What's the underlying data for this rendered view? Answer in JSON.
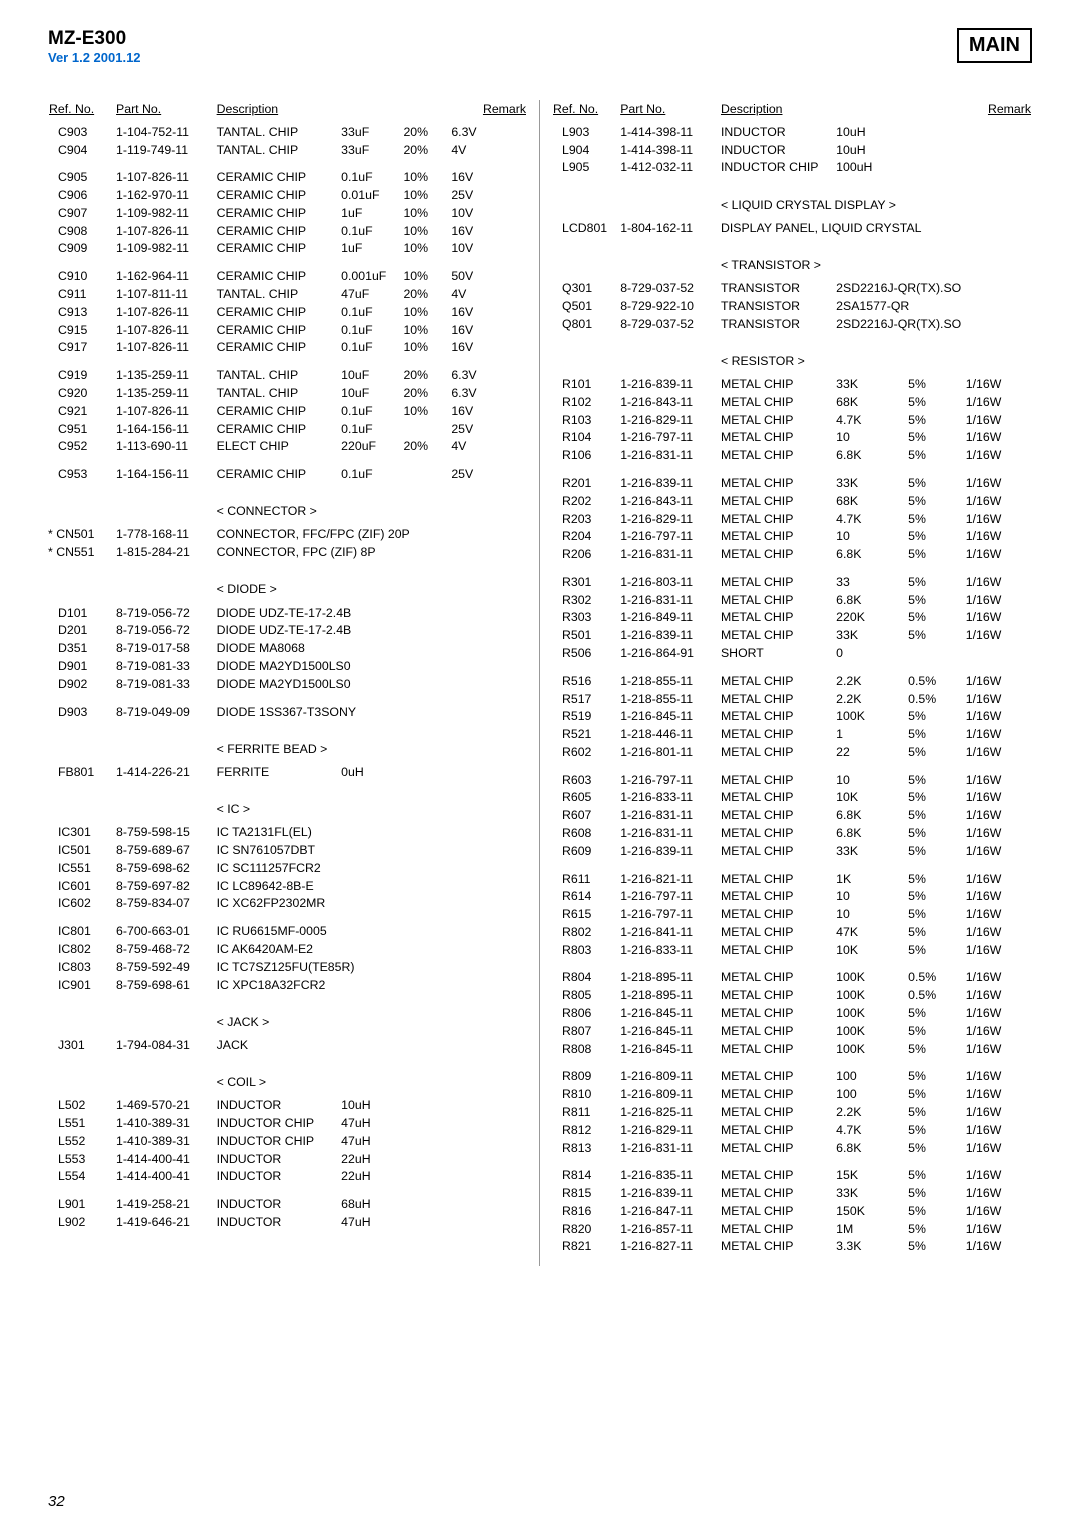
{
  "header": {
    "model": "MZ-E300",
    "ver": "Ver 1.2 2001.12",
    "ver_color": "#0066cc",
    "main_label": "MAIN"
  },
  "page_number": "32",
  "col_headers": [
    "Ref. No.",
    "Part No.",
    "Description",
    "",
    "",
    "Remark"
  ],
  "col_headers_r": [
    "Ref. No.",
    "Part No.",
    "Description",
    "",
    "",
    "Remark"
  ],
  "left": {
    "widths": [
      "14%",
      "21%",
      "26%",
      "13%",
      "10%",
      "16%"
    ],
    "groups": [
      {
        "rows": [
          [
            "C903",
            "1-104-752-11",
            "TANTAL. CHIP",
            "33uF",
            "20%",
            "6.3V"
          ],
          [
            "C904",
            "1-119-749-11",
            "TANTAL. CHIP",
            "33uF",
            "20%",
            "4V"
          ]
        ]
      },
      {
        "rows": [
          [
            "C905",
            "1-107-826-11",
            "CERAMIC CHIP",
            "0.1uF",
            "10%",
            "16V"
          ],
          [
            "C906",
            "1-162-970-11",
            "CERAMIC CHIP",
            "0.01uF",
            "10%",
            "25V"
          ],
          [
            "C907",
            "1-109-982-11",
            "CERAMIC CHIP",
            "1uF",
            "10%",
            "10V"
          ],
          [
            "C908",
            "1-107-826-11",
            "CERAMIC CHIP",
            "0.1uF",
            "10%",
            "16V"
          ],
          [
            "C909",
            "1-109-982-11",
            "CERAMIC CHIP",
            "1uF",
            "10%",
            "10V"
          ]
        ]
      },
      {
        "rows": [
          [
            "C910",
            "1-162-964-11",
            "CERAMIC CHIP",
            "0.001uF",
            "10%",
            "50V"
          ],
          [
            "C911",
            "1-107-811-11",
            "TANTAL. CHIP",
            "47uF",
            "20%",
            "4V"
          ],
          [
            "C913",
            "1-107-826-11",
            "CERAMIC CHIP",
            "0.1uF",
            "10%",
            "16V"
          ],
          [
            "C915",
            "1-107-826-11",
            "CERAMIC CHIP",
            "0.1uF",
            "10%",
            "16V"
          ],
          [
            "C917",
            "1-107-826-11",
            "CERAMIC CHIP",
            "0.1uF",
            "10%",
            "16V"
          ]
        ]
      },
      {
        "rows": [
          [
            "C919",
            "1-135-259-11",
            "TANTAL. CHIP",
            "10uF",
            "20%",
            "6.3V"
          ],
          [
            "C920",
            "1-135-259-11",
            "TANTAL. CHIP",
            "10uF",
            "20%",
            "6.3V"
          ],
          [
            "C921",
            "1-107-826-11",
            "CERAMIC CHIP",
            "0.1uF",
            "10%",
            "16V"
          ],
          [
            "C951",
            "1-164-156-11",
            "CERAMIC CHIP",
            "0.1uF",
            "",
            "25V"
          ],
          [
            "C952",
            "1-113-690-11",
            "ELECT CHIP",
            "220uF",
            "20%",
            "4V"
          ]
        ]
      },
      {
        "rows": [
          [
            "C953",
            "1-164-156-11",
            "CERAMIC CHIP",
            "0.1uF",
            "",
            "25V"
          ]
        ]
      },
      {
        "section": "< CONNECTOR >"
      },
      {
        "rows": [
          [
            "* CN501",
            "1-778-168-11",
            "CONNECTOR, FFC/FPC (ZIF) 20P",
            "",
            "",
            ""
          ],
          [
            "* CN551",
            "1-815-284-21",
            "CONNECTOR, FPC (ZIF) 8P",
            "",
            "",
            ""
          ]
        ],
        "star": true
      },
      {
        "section": "< DIODE >"
      },
      {
        "rows": [
          [
            "D101",
            "8-719-056-72",
            "DIODE  UDZ-TE-17-2.4B",
            "",
            "",
            ""
          ],
          [
            "D201",
            "8-719-056-72",
            "DIODE  UDZ-TE-17-2.4B",
            "",
            "",
            ""
          ],
          [
            "D351",
            "8-719-017-58",
            "DIODE  MA8068",
            "",
            "",
            ""
          ],
          [
            "D901",
            "8-719-081-33",
            "DIODE  MA2YD1500LS0",
            "",
            "",
            ""
          ],
          [
            "D902",
            "8-719-081-33",
            "DIODE  MA2YD1500LS0",
            "",
            "",
            ""
          ]
        ]
      },
      {
        "rows": [
          [
            "D903",
            "8-719-049-09",
            "DIODE  1SS367-T3SONY",
            "",
            "",
            ""
          ]
        ]
      },
      {
        "section": "< FERRITE BEAD >"
      },
      {
        "rows": [
          [
            "FB801",
            "1-414-226-21",
            "FERRITE",
            "0uH",
            "",
            ""
          ]
        ]
      },
      {
        "section": "< IC >"
      },
      {
        "rows": [
          [
            "IC301",
            "8-759-598-15",
            "IC   TA2131FL(EL)",
            "",
            "",
            ""
          ],
          [
            "IC501",
            "8-759-689-67",
            "IC   SN761057DBT",
            "",
            "",
            ""
          ],
          [
            "IC551",
            "8-759-698-62",
            "IC   SC111257FCR2",
            "",
            "",
            ""
          ],
          [
            "IC601",
            "8-759-697-82",
            "IC   LC89642-8B-E",
            "",
            "",
            ""
          ],
          [
            "IC602",
            "8-759-834-07",
            "IC   XC62FP2302MR",
            "",
            "",
            ""
          ]
        ]
      },
      {
        "rows": [
          [
            "IC801",
            "6-700-663-01",
            "IC   RU6615MF-0005",
            "",
            "",
            ""
          ],
          [
            "IC802",
            "8-759-468-72",
            "IC   AK6420AM-E2",
            "",
            "",
            ""
          ],
          [
            "IC803",
            "8-759-592-49",
            "IC   TC7SZ125FU(TE85R)",
            "",
            "",
            ""
          ],
          [
            "IC901",
            "8-759-698-61",
            "IC   XPC18A32FCR2",
            "",
            "",
            ""
          ]
        ]
      },
      {
        "section": "< JACK >"
      },
      {
        "rows": [
          [
            "J301",
            "1-794-084-31",
            "JACK",
            "",
            "",
            ""
          ]
        ]
      },
      {
        "section": "< COIL >"
      },
      {
        "rows": [
          [
            "L502",
            "1-469-570-21",
            "INDUCTOR",
            "10uH",
            "",
            ""
          ],
          [
            "L551",
            "1-410-389-31",
            "INDUCTOR CHIP",
            "47uH",
            "",
            ""
          ],
          [
            "L552",
            "1-410-389-31",
            "INDUCTOR CHIP",
            "47uH",
            "",
            ""
          ],
          [
            "L553",
            "1-414-400-41",
            "INDUCTOR",
            "22uH",
            "",
            ""
          ],
          [
            "L554",
            "1-414-400-41",
            "INDUCTOR",
            "22uH",
            "",
            ""
          ]
        ]
      },
      {
        "rows": [
          [
            "L901",
            "1-419-258-21",
            "INDUCTOR",
            "68uH",
            "",
            ""
          ],
          [
            "L902",
            "1-419-646-21",
            "INDUCTOR",
            "47uH",
            "",
            ""
          ]
        ]
      }
    ]
  },
  "right": {
    "widths": [
      "14%",
      "21%",
      "24%",
      "15%",
      "12%",
      "14%"
    ],
    "groups": [
      {
        "rows": [
          [
            "L903",
            "1-414-398-11",
            "INDUCTOR",
            "10uH",
            "",
            ""
          ],
          [
            "L904",
            "1-414-398-11",
            "INDUCTOR",
            "10uH",
            "",
            ""
          ],
          [
            "L905",
            "1-412-032-11",
            "INDUCTOR CHIP",
            "100uH",
            "",
            ""
          ]
        ]
      },
      {
        "section": "< LIQUID CRYSTAL DISPLAY >"
      },
      {
        "rows": [
          [
            "LCD801",
            "1-804-162-11",
            "DISPLAY PANEL, LIQUID CRYSTAL",
            "",
            "",
            ""
          ]
        ],
        "wide3": true
      },
      {
        "section": "< TRANSISTOR >"
      },
      {
        "rows": [
          [
            "Q301",
            "8-729-037-52",
            "TRANSISTOR",
            "2SD2216J-QR(TX).SO",
            "",
            ""
          ],
          [
            "Q501",
            "8-729-922-10",
            "TRANSISTOR",
            "2SA1577-QR",
            "",
            ""
          ],
          [
            "Q801",
            "8-729-037-52",
            "TRANSISTOR",
            "2SD2216J-QR(TX).SO",
            "",
            ""
          ]
        ],
        "wide4": true
      },
      {
        "section": "< RESISTOR >"
      },
      {
        "rows": [
          [
            "R101",
            "1-216-839-11",
            "METAL CHIP",
            "33K",
            "5%",
            "1/16W"
          ],
          [
            "R102",
            "1-216-843-11",
            "METAL CHIP",
            "68K",
            "5%",
            "1/16W"
          ],
          [
            "R103",
            "1-216-829-11",
            "METAL CHIP",
            "4.7K",
            "5%",
            "1/16W"
          ],
          [
            "R104",
            "1-216-797-11",
            "METAL CHIP",
            "10",
            "5%",
            "1/16W"
          ],
          [
            "R106",
            "1-216-831-11",
            "METAL CHIP",
            "6.8K",
            "5%",
            "1/16W"
          ]
        ]
      },
      {
        "rows": [
          [
            "R201",
            "1-216-839-11",
            "METAL CHIP",
            "33K",
            "5%",
            "1/16W"
          ],
          [
            "R202",
            "1-216-843-11",
            "METAL CHIP",
            "68K",
            "5%",
            "1/16W"
          ],
          [
            "R203",
            "1-216-829-11",
            "METAL CHIP",
            "4.7K",
            "5%",
            "1/16W"
          ],
          [
            "R204",
            "1-216-797-11",
            "METAL CHIP",
            "10",
            "5%",
            "1/16W"
          ],
          [
            "R206",
            "1-216-831-11",
            "METAL CHIP",
            "6.8K",
            "5%",
            "1/16W"
          ]
        ]
      },
      {
        "rows": [
          [
            "R301",
            "1-216-803-11",
            "METAL CHIP",
            "33",
            "5%",
            "1/16W"
          ],
          [
            "R302",
            "1-216-831-11",
            "METAL CHIP",
            "6.8K",
            "5%",
            "1/16W"
          ],
          [
            "R303",
            "1-216-849-11",
            "METAL CHIP",
            "220K",
            "5%",
            "1/16W"
          ],
          [
            "R501",
            "1-216-839-11",
            "METAL CHIP",
            "33K",
            "5%",
            "1/16W"
          ],
          [
            "R506",
            "1-216-864-91",
            "SHORT",
            "0",
            "",
            ""
          ]
        ]
      },
      {
        "rows": [
          [
            "R516",
            "1-218-855-11",
            "METAL CHIP",
            "2.2K",
            "0.5%",
            "1/16W"
          ],
          [
            "R517",
            "1-218-855-11",
            "METAL CHIP",
            "2.2K",
            "0.5%",
            "1/16W"
          ],
          [
            "R519",
            "1-216-845-11",
            "METAL CHIP",
            "100K",
            "5%",
            "1/16W"
          ],
          [
            "R521",
            "1-218-446-11",
            "METAL CHIP",
            "1",
            "5%",
            "1/16W"
          ],
          [
            "R602",
            "1-216-801-11",
            "METAL CHIP",
            "22",
            "5%",
            "1/16W"
          ]
        ]
      },
      {
        "rows": [
          [
            "R603",
            "1-216-797-11",
            "METAL CHIP",
            "10",
            "5%",
            "1/16W"
          ],
          [
            "R605",
            "1-216-833-11",
            "METAL CHIP",
            "10K",
            "5%",
            "1/16W"
          ],
          [
            "R607",
            "1-216-831-11",
            "METAL CHIP",
            "6.8K",
            "5%",
            "1/16W"
          ],
          [
            "R608",
            "1-216-831-11",
            "METAL CHIP",
            "6.8K",
            "5%",
            "1/16W"
          ],
          [
            "R609",
            "1-216-839-11",
            "METAL CHIP",
            "33K",
            "5%",
            "1/16W"
          ]
        ]
      },
      {
        "rows": [
          [
            "R611",
            "1-216-821-11",
            "METAL CHIP",
            "1K",
            "5%",
            "1/16W"
          ],
          [
            "R614",
            "1-216-797-11",
            "METAL CHIP",
            "10",
            "5%",
            "1/16W"
          ],
          [
            "R615",
            "1-216-797-11",
            "METAL CHIP",
            "10",
            "5%",
            "1/16W"
          ],
          [
            "R802",
            "1-216-841-11",
            "METAL CHIP",
            "47K",
            "5%",
            "1/16W"
          ],
          [
            "R803",
            "1-216-833-11",
            "METAL CHIP",
            "10K",
            "5%",
            "1/16W"
          ]
        ]
      },
      {
        "rows": [
          [
            "R804",
            "1-218-895-11",
            "METAL CHIP",
            "100K",
            "0.5%",
            "1/16W"
          ],
          [
            "R805",
            "1-218-895-11",
            "METAL CHIP",
            "100K",
            "0.5%",
            "1/16W"
          ],
          [
            "R806",
            "1-216-845-11",
            "METAL CHIP",
            "100K",
            "5%",
            "1/16W"
          ],
          [
            "R807",
            "1-216-845-11",
            "METAL CHIP",
            "100K",
            "5%",
            "1/16W"
          ],
          [
            "R808",
            "1-216-845-11",
            "METAL CHIP",
            "100K",
            "5%",
            "1/16W"
          ]
        ]
      },
      {
        "rows": [
          [
            "R809",
            "1-216-809-11",
            "METAL CHIP",
            "100",
            "5%",
            "1/16W"
          ],
          [
            "R810",
            "1-216-809-11",
            "METAL CHIP",
            "100",
            "5%",
            "1/16W"
          ],
          [
            "R811",
            "1-216-825-11",
            "METAL CHIP",
            "2.2K",
            "5%",
            "1/16W"
          ],
          [
            "R812",
            "1-216-829-11",
            "METAL CHIP",
            "4.7K",
            "5%",
            "1/16W"
          ],
          [
            "R813",
            "1-216-831-11",
            "METAL CHIP",
            "6.8K",
            "5%",
            "1/16W"
          ]
        ]
      },
      {
        "rows": [
          [
            "R814",
            "1-216-835-11",
            "METAL CHIP",
            "15K",
            "5%",
            "1/16W"
          ],
          [
            "R815",
            "1-216-839-11",
            "METAL CHIP",
            "33K",
            "5%",
            "1/16W"
          ],
          [
            "R816",
            "1-216-847-11",
            "METAL CHIP",
            "150K",
            "5%",
            "1/16W"
          ],
          [
            "R820",
            "1-216-857-11",
            "METAL CHIP",
            "1M",
            "5%",
            "1/16W"
          ],
          [
            "R821",
            "1-216-827-11",
            "METAL CHIP",
            "3.3K",
            "5%",
            "1/16W"
          ]
        ]
      }
    ]
  }
}
